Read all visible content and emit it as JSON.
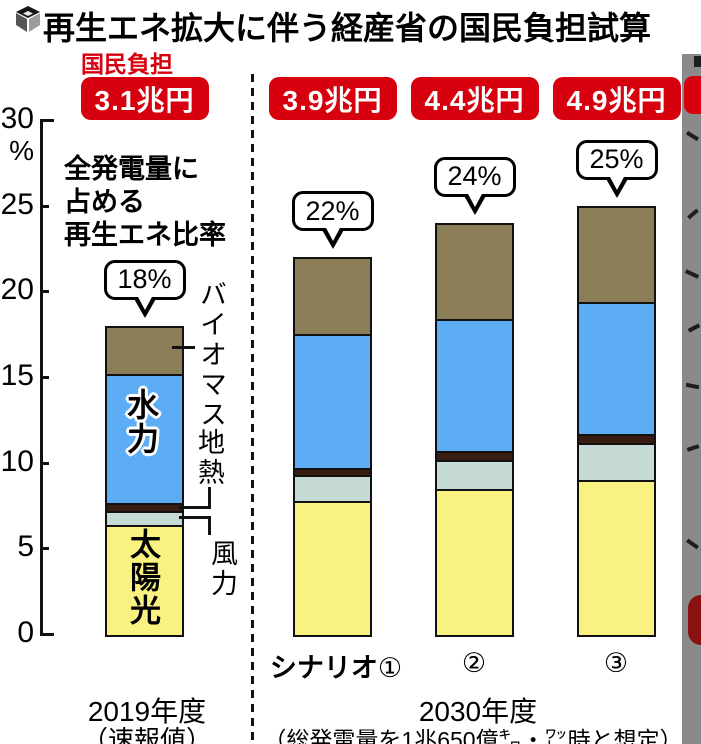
{
  "header": {
    "title": "再生エネ拡大に伴う経産省の国民負担試算",
    "title_icon": "cube-icon",
    "burden_caption": "国民負担"
  },
  "axis": {
    "unit": "%"
  },
  "chart_data": {
    "type": "bar",
    "stacked": true,
    "title": "再生エネ拡大に伴う経産省の国民負担試算",
    "ylabel": "%",
    "ylim": [
      0,
      30
    ],
    "yticks": [
      0,
      5,
      10,
      15,
      20,
      25,
      30
    ],
    "grid": false,
    "segment_order": [
      "太陽光",
      "風力",
      "地熱",
      "水力",
      "バイオマス"
    ],
    "segment_colors": {
      "太陽光": "#f9f180",
      "風力": "#c6dbd5",
      "地熱": "#381d10",
      "水力": "#5cadf6",
      "バイオマス": "#8b7d58"
    },
    "bars": [
      {
        "name": "2019年度（速報値）",
        "share_label": "18%",
        "share_pct": 18,
        "burden_label": "3.1兆円",
        "values": {
          "太陽光": 6.5,
          "風力": 0.7,
          "地熱": 0.4,
          "水力": 7.6,
          "バイオマス": 2.8
        }
      },
      {
        "name": "シナリオ①",
        "share_label": "22%",
        "share_pct": 22,
        "burden_label": "3.9兆円",
        "values": {
          "太陽光": 7.9,
          "風力": 1.4,
          "地熱": 0.3,
          "水力": 7.9,
          "バイオマス": 4.5
        }
      },
      {
        "name": "シナリオ②",
        "share_label": "24%",
        "share_pct": 24,
        "burden_label": "4.4兆円",
        "values": {
          "太陽光": 8.6,
          "風力": 1.6,
          "地熱": 0.4,
          "水力": 7.8,
          "バイオマス": 5.6
        }
      },
      {
        "name": "シナリオ③",
        "share_label": "25%",
        "share_pct": 25,
        "burden_label": "4.9兆円",
        "values": {
          "太陽光": 9.1,
          "風力": 2.1,
          "地熱": 0.4,
          "水力": 7.8,
          "バイオマス": 5.6
        }
      }
    ]
  },
  "annotations": {
    "ratio_note_lines": [
      "全発電量に",
      "占める",
      "再生エネ比率"
    ],
    "labels": {
      "biomass": "バイオマス",
      "hydro": "水力",
      "geothermal": "地熱",
      "wind": "風力",
      "solar": "太陽光"
    }
  },
  "x_axis": {
    "left_year": "2019年度",
    "left_sub": "（速報値）",
    "scenario_prefix": "シナリオ",
    "scenario_numbers": [
      "①",
      "②",
      "③"
    ],
    "right_year": "2030年度",
    "right_sub": "（総発電量を1兆650億㌔・㍗時と想定）"
  },
  "colors": {
    "badge_red": "#d7000f",
    "caption_red": "#d7000f",
    "strip_gray": "#8a8a8a",
    "outline_black": "#111111"
  }
}
